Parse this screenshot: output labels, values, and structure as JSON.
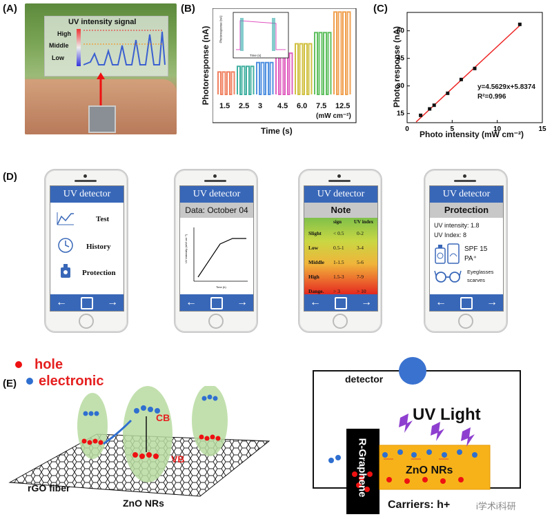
{
  "panels": {
    "a": {
      "label": "(A)",
      "signal_title": "UV intensity signal",
      "levels": [
        "High",
        "Middle",
        "Low"
      ]
    },
    "b": {
      "label": "(B)",
      "ylabel": "Photoresponse (nA)",
      "xlabel": "Time (s)",
      "intensity_labels": [
        "1.5",
        "2.5",
        "3",
        "4.5",
        "6.0",
        "7.5",
        "12.5"
      ],
      "unit": "(mW cm⁻²)",
      "inset_ylabel": "Photoresponse (nA)",
      "inset_xlabel": "Time (s)"
    },
    "c": {
      "label": "(C)",
      "ylabel": "Photo response (nA)",
      "xlabel": "Photo intensity (mW cm⁻²)",
      "equation": "y=4.5629x+5.8374",
      "r2": "R²=0.996"
    },
    "d": {
      "label": "(D)"
    },
    "e": {
      "label": "(E)"
    }
  },
  "chart_data": [
    {
      "type": "line",
      "title": "",
      "xlabel": "Time (s)",
      "ylabel": "Photoresponse (nA)",
      "categories": [
        "1.5",
        "2.5",
        "3",
        "4.5",
        "6.0",
        "7.5",
        "12.5"
      ],
      "series": [
        {
          "values": [
            12,
            15,
            17,
            22,
            27,
            33,
            44
          ]
        }
      ]
    },
    {
      "type": "scatter",
      "xlabel": "Photo intensity (mW cm⁻²)",
      "ylabel": "Photo response (nA)",
      "xlim": [
        0,
        15
      ],
      "ylim": [
        10,
        70
      ],
      "xticks": [
        "0",
        "5",
        "10",
        "15"
      ],
      "yticks": [
        "15",
        "30",
        "45",
        "60"
      ],
      "x": [
        1.5,
        2.5,
        3,
        4.5,
        6,
        7.5,
        12.5
      ],
      "y": [
        14,
        17.5,
        19.5,
        26,
        33.5,
        39.5,
        63.5
      ],
      "fit": {
        "slope": 4.5629,
        "intercept": 5.8374
      }
    }
  ],
  "phones": [
    {
      "title": "UV detector",
      "items": [
        "Test",
        "History",
        "Protection"
      ]
    },
    {
      "title": "UV detector",
      "header": "Data: October 04"
    },
    {
      "title": "UV detector",
      "header": "Note",
      "columns": [
        "sign",
        "UV index"
      ],
      "rows": [
        {
          "level": "Slight",
          "sign": "< 0.5",
          "index": "0-2"
        },
        {
          "level": "Low",
          "sign": "0.5-1",
          "index": "3-4"
        },
        {
          "level": "Middle",
          "sign": "1-1.5",
          "index": "5-6"
        },
        {
          "level": "High",
          "sign": "1.5-3",
          "index": "7-9"
        },
        {
          "level": "Dange.",
          "sign": "> 3",
          "index": "> 10"
        }
      ]
    },
    {
      "title": "UV detector",
      "header": "Protection",
      "intensity": "UV intensity: 1.8",
      "index": "UV Index: 8",
      "spf": "SPF 15",
      "pa": "PA⁺",
      "eyeglasses": "Eyeglasses",
      "scarves": "scarves"
    }
  ],
  "diagram_e": {
    "legend_hole": "hole",
    "legend_electronic": "electronic",
    "cb": "CB",
    "vb": "VB",
    "rgo": "rGO fiber",
    "zno": "ZnO NRs",
    "detector": "detector",
    "uv_light": "UV Light",
    "graphene": "R-Graphene",
    "zno2": "ZnO NRs",
    "carriers": "Carriers: h+",
    "watermark": "i学术i科研"
  }
}
